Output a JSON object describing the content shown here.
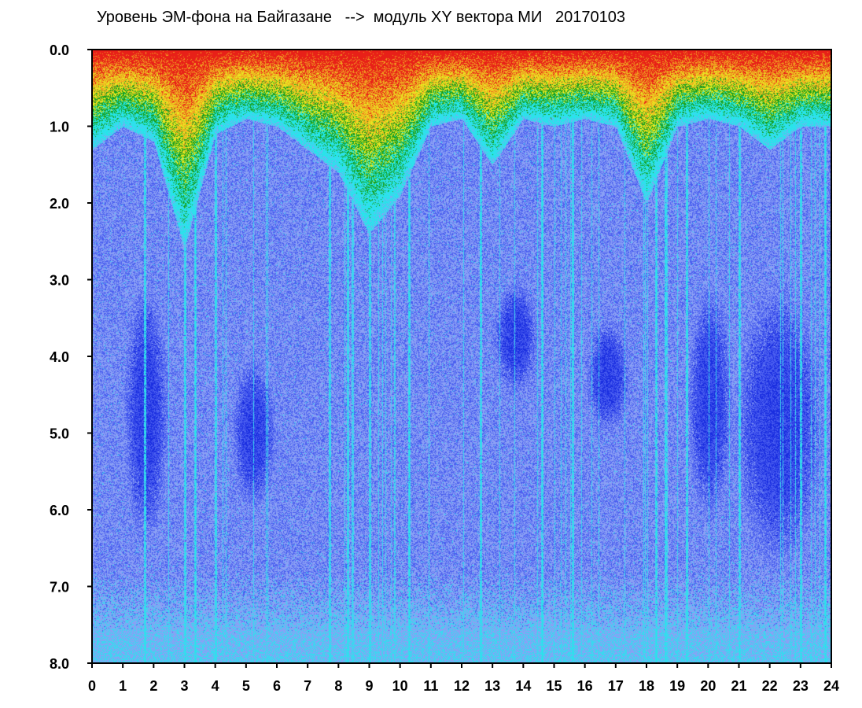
{
  "chart_data": {
    "type": "heatmap",
    "title": "Уровень ЭМ-фона на Байгазане   -->  модуль XY вектора МИ   20170103",
    "xlabel": "",
    "ylabel": "",
    "xlim": [
      0,
      24
    ],
    "ylim": [
      0,
      8
    ],
    "y_axis_inverted": true,
    "x_ticks": [
      0,
      1,
      2,
      3,
      4,
      5,
      6,
      7,
      8,
      9,
      10,
      11,
      12,
      13,
      14,
      15,
      16,
      17,
      18,
      19,
      20,
      21,
      22,
      23,
      24
    ],
    "x_tick_labels": [
      "0",
      "1",
      "2",
      "3",
      "4",
      "5",
      "6",
      "7",
      "8",
      "9",
      "10",
      "11",
      "12",
      "13",
      "14",
      "15",
      "16",
      "17",
      "18",
      "19",
      "20",
      "21",
      "22",
      "23",
      "24"
    ],
    "y_ticks": [
      0,
      1,
      2,
      3,
      4,
      5,
      6,
      7,
      8
    ],
    "y_tick_labels": [
      "0.0",
      "1.0",
      "2.0",
      "3.0",
      "4.0",
      "5.0",
      "6.0",
      "7.0",
      "8.0"
    ],
    "grid": false,
    "legend": "none",
    "colormap": [
      "#1a2ee0",
      "#4a5ff0",
      "#8aa0f5",
      "#3ad8f0",
      "#22e8e8",
      "#18a020",
      "#e8e820",
      "#f0a020",
      "#e82018"
    ],
    "hourly_upper_extent": [
      1.3,
      1.0,
      1.2,
      2.6,
      1.1,
      0.9,
      1.0,
      1.3,
      1.6,
      2.4,
      1.9,
      1.0,
      0.9,
      1.5,
      0.9,
      1.0,
      0.9,
      1.0,
      2.0,
      1.0,
      0.9,
      1.0,
      1.3,
      1.0
    ],
    "dark_regions": [
      {
        "x_from": 1.0,
        "x_to": 2.5,
        "y_from": 3.0,
        "y_to": 6.5
      },
      {
        "x_from": 4.5,
        "x_to": 6.0,
        "y_from": 4.0,
        "y_to": 6.0
      },
      {
        "x_from": 13.0,
        "x_to": 14.5,
        "y_from": 3.0,
        "y_to": 4.5
      },
      {
        "x_from": 16.0,
        "x_to": 17.5,
        "y_from": 3.5,
        "y_to": 5.0
      },
      {
        "x_from": 19.3,
        "x_to": 20.8,
        "y_from": 3.0,
        "y_to": 6.2
      },
      {
        "x_from": 20.8,
        "x_to": 23.8,
        "y_from": 3.0,
        "y_to": 6.8
      }
    ],
    "bright_vertical_lines_x": [
      1.7,
      3.0,
      3.35,
      4.0,
      7.7,
      8.3,
      9.0,
      10.3,
      12.6,
      14.6,
      15.6,
      18.3,
      18.6,
      19.3,
      21.0,
      23.0,
      23.8
    ]
  }
}
